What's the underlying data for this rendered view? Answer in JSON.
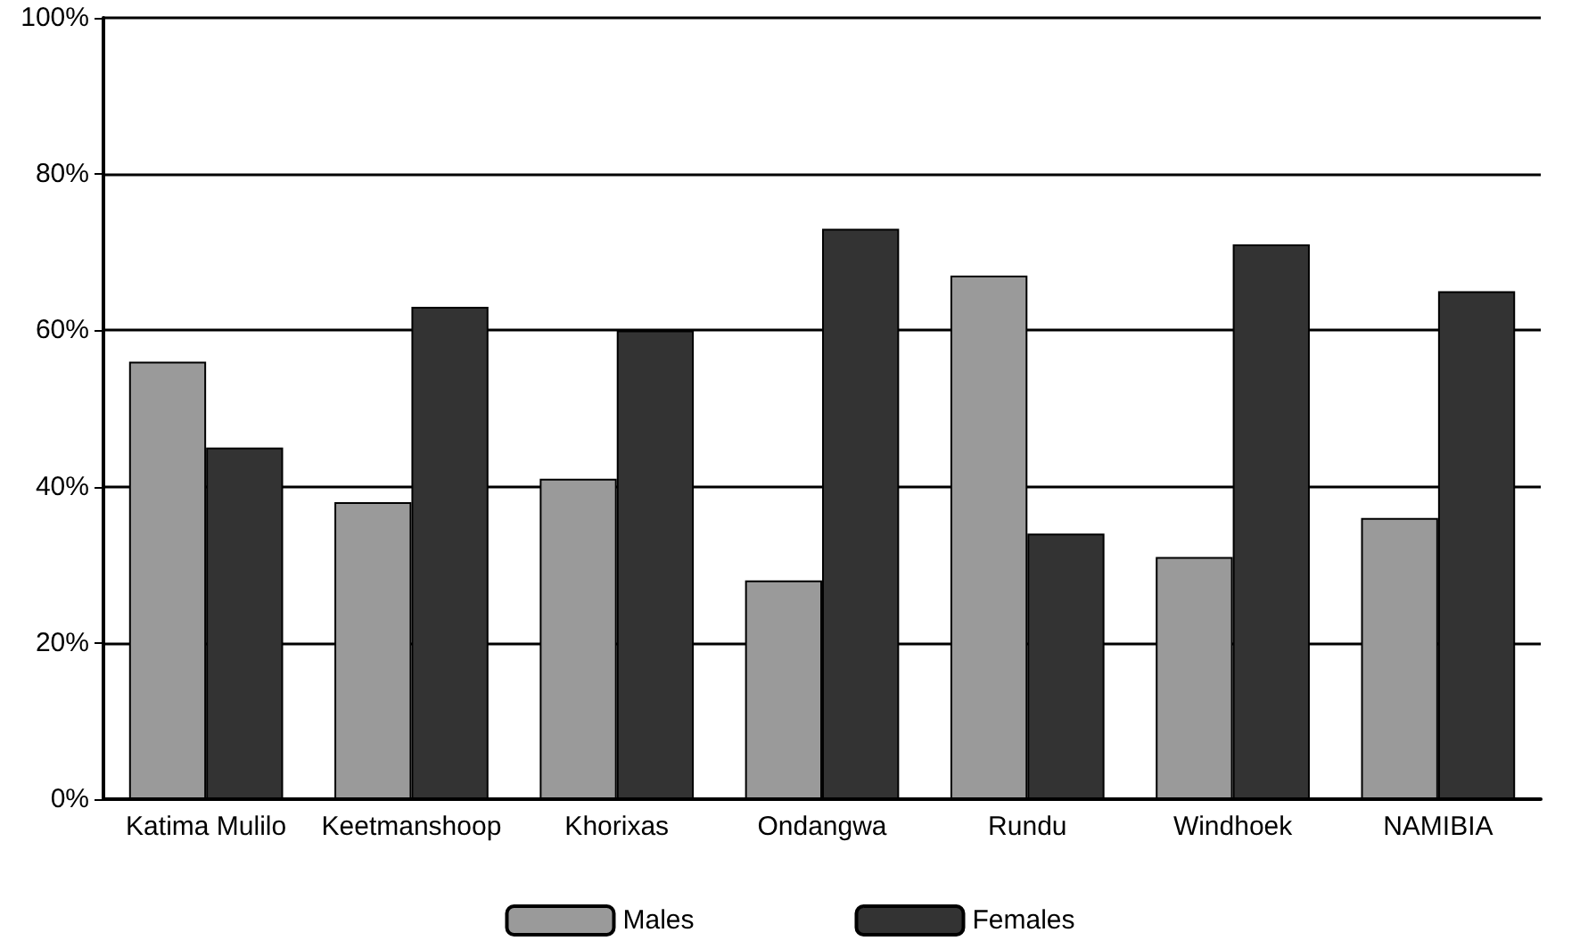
{
  "chart_data": {
    "type": "bar",
    "categories": [
      "Katima Mulilo",
      "Keetmanshoop",
      "Khorixas",
      "Ondangwa",
      "Rundu",
      "Windhoek",
      "NAMIBIA"
    ],
    "series": [
      {
        "name": "Males",
        "color": "#9a9a9a",
        "values": [
          56,
          38,
          41,
          28,
          67,
          31,
          36
        ]
      },
      {
        "name": "Females",
        "color": "#333333",
        "values": [
          45,
          63,
          60,
          73,
          34,
          71,
          65
        ]
      }
    ],
    "ylim": [
      0,
      100
    ],
    "yticks": [
      {
        "value": 0,
        "label": "0%"
      },
      {
        "value": 20,
        "label": "20%"
      },
      {
        "value": 40,
        "label": "40%"
      },
      {
        "value": 60,
        "label": "60%"
      },
      {
        "value": 80,
        "label": "80%"
      },
      {
        "value": 100,
        "label": "100%"
      }
    ],
    "grid": "y",
    "legend": "bottom"
  }
}
